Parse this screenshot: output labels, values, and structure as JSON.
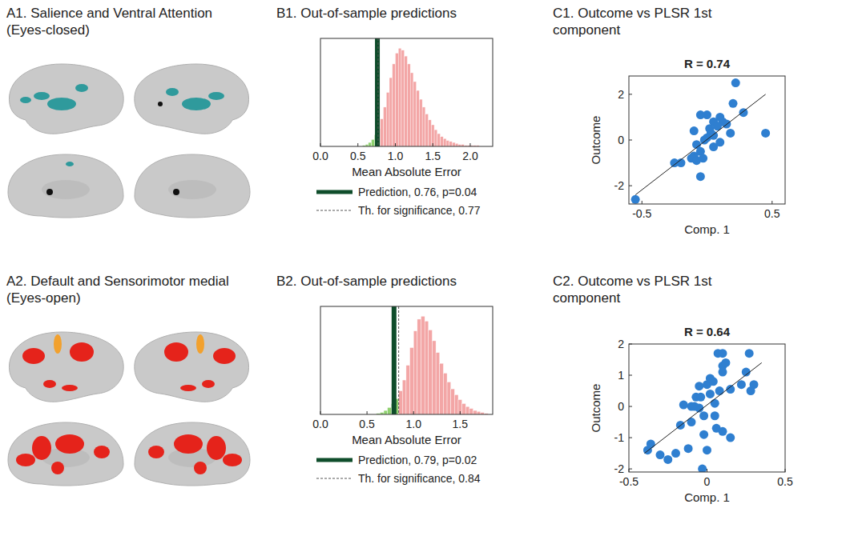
{
  "brain_panels": [
    {
      "title": "A1. Salience and Ventral Attention (Eyes-closed)",
      "colors": [
        "#2f9a9c",
        "#111111"
      ]
    },
    {
      "title": "A2. Default and Sensorimotor medial (Eyes-open)",
      "colors": [
        "#e5231b",
        "#f2a12e"
      ]
    }
  ],
  "chart_data": [
    {
      "type": "histogram",
      "title": "B1. Out-of-sample predictions",
      "xlabel": "Mean Absolute Error",
      "bins": [
        0.56,
        0.6,
        0.64,
        0.68,
        0.72,
        0.76,
        0.8,
        0.84,
        0.88,
        0.92,
        0.96,
        1.0,
        1.04,
        1.08,
        1.12,
        1.16,
        1.2,
        1.24,
        1.28,
        1.32,
        1.36,
        1.4,
        1.44,
        1.48,
        1.52,
        1.56,
        1.6,
        1.64,
        1.68,
        1.72,
        1.76,
        1.8,
        1.84,
        1.88,
        1.92,
        1.96,
        2.0,
        2.04,
        2.08,
        2.12,
        2.16,
        2.2
      ],
      "values": [
        1,
        2,
        4,
        7,
        12,
        18,
        28,
        40,
        55,
        70,
        84,
        95,
        100,
        98,
        92,
        84,
        75,
        66,
        57,
        48,
        40,
        33,
        27,
        22,
        17,
        13,
        10,
        8,
        6,
        5,
        4,
        3,
        2,
        2,
        1,
        1,
        1,
        1,
        1,
        0,
        0
      ],
      "colors": [
        "#8fd16f",
        "#8fd16f",
        "#8fd16f",
        "#8fd16f",
        "#8fd16f",
        "#f3a6a6",
        "#f3a6a6",
        "#f3a6a6",
        "#f3a6a6",
        "#f3a6a6",
        "#f3a6a6",
        "#f3a6a6",
        "#f3a6a6",
        "#f3a6a6",
        "#f3a6a6",
        "#f3a6a6",
        "#f3a6a6",
        "#f3a6a6",
        "#f3a6a6",
        "#f3a6a6",
        "#f3a6a6",
        "#f3a6a6",
        "#f3a6a6",
        "#f3a6a6",
        "#f3a6a6",
        "#f3a6a6",
        "#f3a6a6",
        "#f3a6a6",
        "#f3a6a6",
        "#f3a6a6",
        "#f3a6a6",
        "#f3a6a6",
        "#f3a6a6",
        "#f3a6a6",
        "#f3a6a6",
        "#f3a6a6",
        "#f3a6a6",
        "#f3a6a6",
        "#f3a6a6",
        "#f3a6a6",
        "#f3a6a6"
      ],
      "xlim": [
        0,
        2.3
      ],
      "xticks": [
        {
          "value": 0,
          "label": "0.0"
        },
        0.5,
        {
          "value": 1,
          "label": "1.0"
        },
        1.5,
        {
          "value": 2,
          "label": "2.0"
        }
      ],
      "ylim": [
        0,
        110
      ],
      "tick_labels": "x",
      "legend": "bottom",
      "lines": [
        {
          "name": "Prediction, 0.76, p=0.04",
          "value": 0.76,
          "color": "#0f4d2b",
          "line_style": "solid"
        },
        {
          "name": "Th. for significance, 0.77",
          "value": 0.77,
          "color": "#555555",
          "line_style": "dashed"
        }
      ]
    },
    {
      "type": "scatter",
      "title": "C1. Outcome vs PLSR 1st component",
      "annotation": "R = 0.74",
      "xlabel": "Comp. 1",
      "ylabel": "Outcome",
      "color": "#2f7fd0",
      "marker": "circle",
      "x": [
        -0.55,
        0.45,
        0.22,
        0.28,
        0.2,
        0.1,
        0.05,
        0,
        -0.05,
        0.12,
        0.15,
        0.18,
        0.08,
        0.03,
        0,
        -0.02,
        0.05,
        0.1,
        -0.08,
        -0.1,
        -0.12,
        -0.08,
        -0.05,
        -0.05,
        -0.2,
        -0.25,
        -0.1,
        0.02,
        -0.03,
        0.05
      ],
      "values": [
        -2.6,
        0.3,
        2.5,
        1.2,
        1.6,
        1.0,
        0.8,
        1.1,
        1.1,
        0.8,
        0.7,
        0.3,
        0.6,
        0.3,
        0.1,
        0,
        -0.3,
        -0.1,
        -0.2,
        -0.7,
        -0.8,
        -0.9,
        -0.5,
        -1.6,
        -1.0,
        -1.0,
        0.4,
        0.5,
        -0.8,
        0.2
      ],
      "fit": {
        "x": [
          -0.55,
          0.45
        ],
        "values": [
          -2.4,
          2.0
        ]
      },
      "xlim": [
        -0.6,
        0.6
      ],
      "xticks": [
        -0.5,
        0.5
      ],
      "ylim": [
        -2.8,
        2.8
      ],
      "yticks": [
        -2,
        0,
        2
      ]
    },
    {
      "type": "histogram",
      "title": "B2. Out-of-sample predictions",
      "xlabel": "Mean Absolute Error",
      "bins": [
        0.6,
        0.64,
        0.68,
        0.72,
        0.76,
        0.8,
        0.84,
        0.88,
        0.92,
        0.96,
        1.0,
        1.04,
        1.08,
        1.12,
        1.16,
        1.2,
        1.24,
        1.28,
        1.32,
        1.36,
        1.4,
        1.44,
        1.48,
        1.52,
        1.56,
        1.6,
        1.64,
        1.68,
        1.72,
        1.76,
        1.8
      ],
      "values": [
        1,
        2,
        4,
        7,
        11,
        16,
        24,
        35,
        50,
        68,
        85,
        97,
        100,
        95,
        86,
        75,
        63,
        52,
        42,
        33,
        26,
        20,
        15,
        11,
        8,
        6,
        4,
        3,
        2,
        1
      ],
      "colors": [
        "#8fd16f",
        "#8fd16f",
        "#8fd16f",
        "#8fd16f",
        "#8fd16f",
        "#8fd16f",
        "#f3a6a6",
        "#f3a6a6",
        "#f3a6a6",
        "#f3a6a6",
        "#f3a6a6",
        "#f3a6a6",
        "#f3a6a6",
        "#f3a6a6",
        "#f3a6a6",
        "#f3a6a6",
        "#f3a6a6",
        "#f3a6a6",
        "#f3a6a6",
        "#f3a6a6",
        "#f3a6a6",
        "#f3a6a6",
        "#f3a6a6",
        "#f3a6a6",
        "#f3a6a6",
        "#f3a6a6",
        "#f3a6a6",
        "#f3a6a6",
        "#f3a6a6",
        "#f3a6a6"
      ],
      "xlim": [
        0,
        1.85
      ],
      "xticks": [
        {
          "value": 0,
          "label": "0.0"
        },
        0.5,
        {
          "value": 1,
          "label": "1.0"
        },
        1.5
      ],
      "ylim": [
        0,
        110
      ],
      "tick_labels": "x",
      "legend": "bottom",
      "lines": [
        {
          "name": "Prediction, 0.79, p=0.02",
          "value": 0.79,
          "color": "#0f4d2b",
          "line_style": "solid"
        },
        {
          "name": "Th. for significance, 0.84",
          "value": 0.84,
          "color": "#555555",
          "line_style": "dashed"
        }
      ]
    },
    {
      "type": "scatter",
      "title": "C2. Outcome vs PLSR 1st component",
      "annotation": "R = 0.64",
      "xlabel": "Comp. 1",
      "ylabel": "Outcome",
      "color": "#2f7fd0",
      "marker": "circle",
      "x": [
        -0.38,
        -0.36,
        -0.3,
        -0.25,
        -0.2,
        -0.17,
        -0.12,
        -0.1,
        -0.08,
        -0.1,
        -0.05,
        -0.07,
        -0.04,
        -0.02,
        0,
        0.02,
        -0.05,
        -0.02,
        0,
        -0.03,
        0.04,
        0.05,
        0.06,
        0.08,
        0.1,
        0.1,
        0.1,
        0.15,
        0.12,
        0.15,
        0.22,
        0.25,
        0.27,
        0.3,
        0.28,
        0.07,
        0.1,
        -0.15,
        0.02,
        0.05
      ],
      "values": [
        -1.4,
        -1.2,
        -1.55,
        -1.7,
        -1.5,
        -0.6,
        -1.35,
        -0.5,
        0,
        0,
        -0.05,
        0.3,
        0.3,
        -0.3,
        0.7,
        0.9,
        0.65,
        -0.9,
        -1.4,
        -2.0,
        0.8,
        -0.3,
        -0.7,
        0.5,
        -0.8,
        1.1,
        1.3,
        0.55,
        1.4,
        -1.0,
        0.7,
        1.1,
        1.7,
        0.7,
        0.5,
        1.7,
        1.7,
        0.05,
        0.4,
        0.1
      ],
      "fit": {
        "x": [
          -0.4,
          0.35
        ],
        "values": [
          -1.5,
          1.4
        ]
      },
      "xlim": [
        -0.5,
        0.5
      ],
      "xticks": [
        -0.5,
        0,
        0.5
      ],
      "ylim": [
        -2.1,
        2
      ],
      "yticks": [
        -2,
        -1,
        0,
        1,
        2
      ]
    }
  ]
}
